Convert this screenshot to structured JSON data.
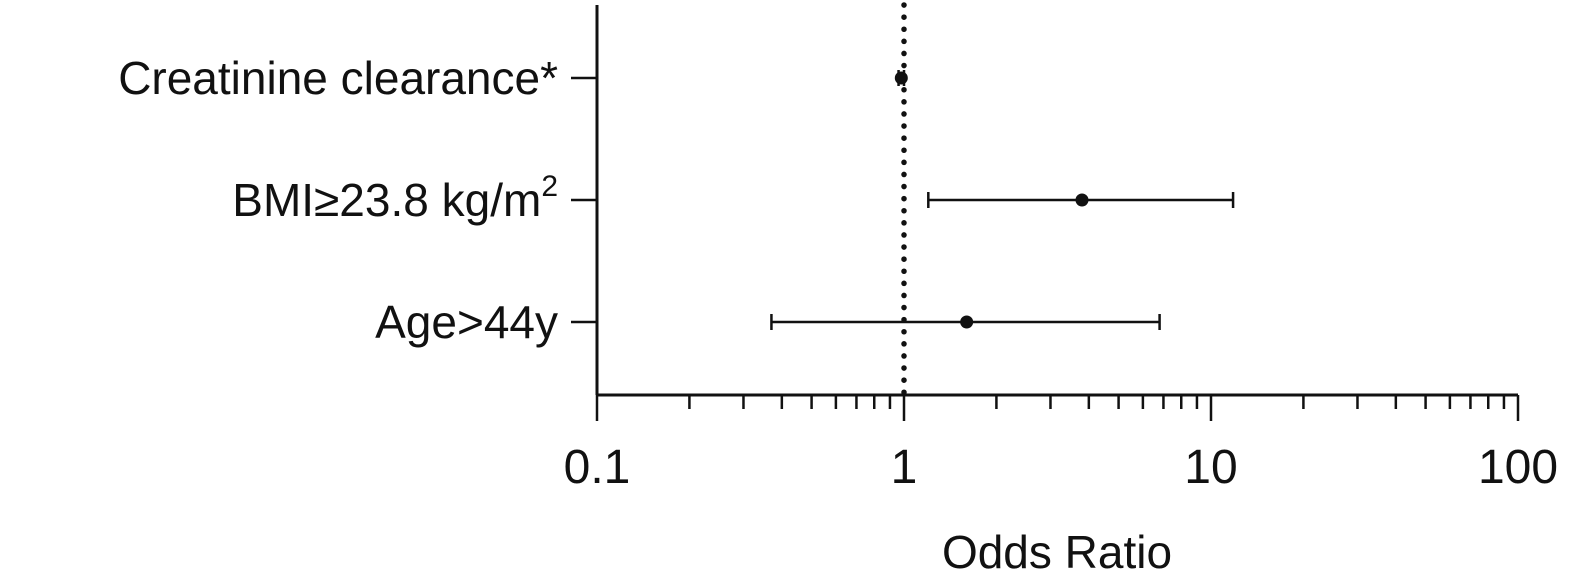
{
  "chart_data": {
    "type": "forest",
    "xlabel": "Odds Ratio",
    "xscale": "log",
    "xlim": [
      0.1,
      100
    ],
    "xticks": [
      0.1,
      1,
      10,
      100
    ],
    "xtick_labels": [
      "0.1",
      "1",
      "10",
      "100"
    ],
    "reference_line": 1,
    "grid": false,
    "rows": [
      {
        "label": "Creatinine clearance*",
        "or": 0.98,
        "ci_low": 0.96,
        "ci_high": 1.0
      },
      {
        "label": "BMI≥23.8 kg/m",
        "label_sup": "2",
        "or": 3.8,
        "ci_low": 1.2,
        "ci_high": 11.8
      },
      {
        "label": "Age>44y",
        "or": 1.6,
        "ci_low": 0.37,
        "ci_high": 6.8
      }
    ]
  }
}
